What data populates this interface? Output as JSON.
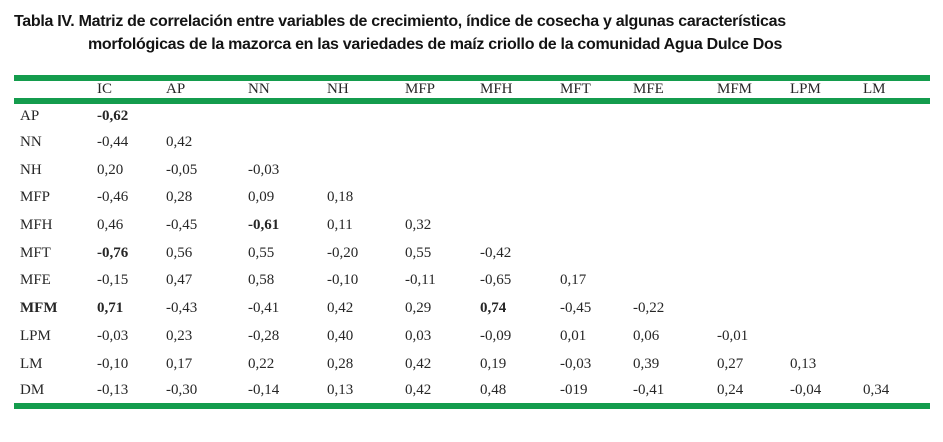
{
  "title": {
    "line1": "Tabla IV. Matriz de correlación entre variables de crecimiento, índice de cosecha y algunas características",
    "line2": "morfológicas de la mazorca en las variedades de maíz criollo de la comunidad Agua Dulce Dos"
  },
  "colors": {
    "rule_green": "#149C4D",
    "text": "#262626"
  },
  "table": {
    "columns": [
      "",
      "IC",
      "AP",
      "NN",
      "NH",
      "MFP",
      "MFH",
      "MFT",
      "MFE",
      "MFM",
      "LPM",
      "LM"
    ],
    "rows": [
      {
        "label": "AP",
        "label_bold": false,
        "cells": [
          {
            "v": "-0,62",
            "b": true
          }
        ]
      },
      {
        "label": "NN",
        "label_bold": false,
        "cells": [
          "-0,44",
          "0,42"
        ]
      },
      {
        "label": "NH",
        "label_bold": false,
        "cells": [
          "0,20",
          "-0,05",
          "-0,03"
        ]
      },
      {
        "label": "MFP",
        "label_bold": false,
        "cells": [
          "-0,46",
          "0,28",
          "0,09",
          "0,18"
        ]
      },
      {
        "label": "MFH",
        "label_bold": false,
        "cells": [
          "0,46",
          "-0,45",
          {
            "v": "-0,61",
            "b": true
          },
          "0,11",
          "0,32"
        ]
      },
      {
        "label": "MFT",
        "label_bold": false,
        "cells": [
          {
            "v": "-0,76",
            "b": true
          },
          "0,56",
          "0,55",
          "-0,20",
          "0,55",
          "-0,42"
        ]
      },
      {
        "label": "MFE",
        "label_bold": false,
        "cells": [
          "-0,15",
          "0,47",
          "0,58",
          "-0,10",
          "-0,11",
          "-0,65",
          "0,17"
        ]
      },
      {
        "label": "MFM",
        "label_bold": true,
        "cells": [
          {
            "v": "0,71",
            "b": true
          },
          "-0,43",
          "-0,41",
          "0,42",
          "0,29",
          {
            "v": "0,74",
            "b": true
          },
          "-0,45",
          "-0,22"
        ]
      },
      {
        "label": "LPM",
        "label_bold": false,
        "cells": [
          "-0,03",
          "0,23",
          "-0,28",
          "0,40",
          "0,03",
          "-0,09",
          "0,01",
          "0,06",
          "-0,01"
        ]
      },
      {
        "label": "LM",
        "label_bold": false,
        "cells": [
          "-0,10",
          "0,17",
          "0,22",
          "0,28",
          "0,42",
          "0,19",
          "-0,03",
          "0,39",
          "0,27",
          "0,13"
        ]
      },
      {
        "label": "DM",
        "label_bold": false,
        "cells": [
          "-0,13",
          "-0,30",
          "-0,14",
          "0,13",
          "0,42",
          "0,48",
          "-019",
          "-0,41",
          "0,24",
          "-0,04",
          "0,34"
        ]
      }
    ]
  }
}
